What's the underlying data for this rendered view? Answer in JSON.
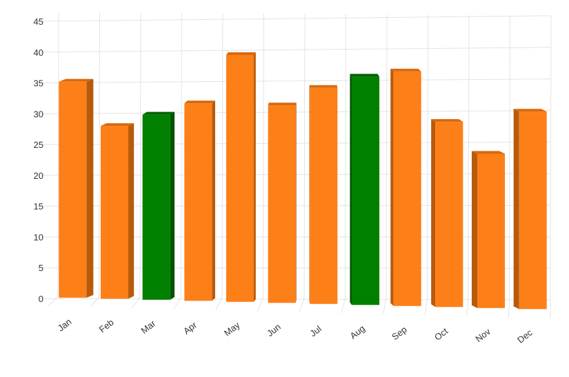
{
  "chart_data": {
    "type": "bar",
    "style": "3d-column",
    "title": "",
    "xlabel": "",
    "ylabel": "",
    "categories": [
      "Jan",
      "Feb",
      "Mar",
      "Apr",
      "May",
      "Jun",
      "Jul",
      "Aug",
      "Sep",
      "Oct",
      "Nov",
      "Dec"
    ],
    "values": [
      35,
      28,
      30,
      32,
      40,
      32,
      35,
      37,
      38,
      30,
      25,
      32
    ],
    "highlighted_categories": [
      "Mar",
      "Aug"
    ],
    "ylim": [
      0,
      45
    ],
    "y_ticks": [
      "0",
      "5",
      "10",
      "15",
      "20",
      "25",
      "30",
      "35",
      "40",
      "45"
    ],
    "grid": true,
    "legend": "none",
    "colors": {
      "default_front": "#fd7f18",
      "default_side": "#b85a0c",
      "default_top": "#d9690e",
      "highlight_front": "#007f00",
      "highlight_side": "#005400",
      "highlight_top": "#006400",
      "grid": "#e3e3e3",
      "axis_text": "#333333"
    }
  }
}
